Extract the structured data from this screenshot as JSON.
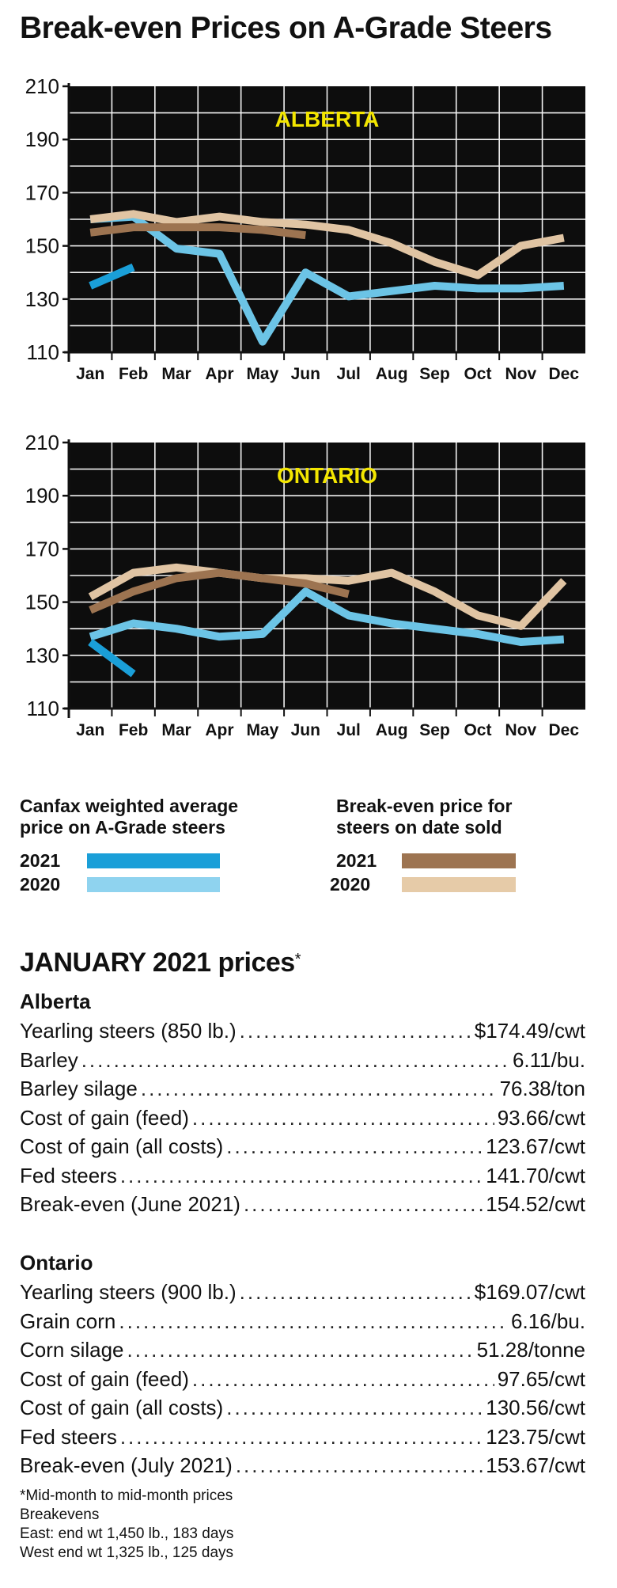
{
  "title": "Break-even Prices on A-Grade Steers",
  "chart_data": [
    {
      "type": "line",
      "region_label": "ALBERTA",
      "categories": [
        "Jan",
        "Feb",
        "Mar",
        "Apr",
        "May",
        "Jun",
        "Jul",
        "Aug",
        "Sep",
        "Oct",
        "Nov",
        "Dec"
      ],
      "yticks": [
        210,
        190,
        170,
        150,
        130,
        110
      ],
      "ylim": [
        110,
        210
      ],
      "grid": true,
      "series": [
        {
          "key": "canfax_2020",
          "color": "#6cc4e6",
          "values": [
            160,
            161,
            149,
            147,
            114,
            140,
            131,
            133,
            135,
            134,
            134,
            135
          ]
        },
        {
          "key": "breakeven_2020",
          "color": "#e0c4a3",
          "values": [
            160,
            162,
            159,
            161,
            159,
            158,
            156,
            151,
            144,
            139,
            150,
            153
          ]
        },
        {
          "key": "breakeven_2021",
          "color": "#9d7451",
          "values": [
            155,
            157,
            157,
            157,
            156,
            154,
            null,
            null,
            null,
            null,
            null,
            null
          ]
        },
        {
          "key": "canfax_2021",
          "color": "#1a9fd8",
          "values": [
            135,
            142,
            null,
            null,
            null,
            null,
            null,
            null,
            null,
            null,
            null,
            null
          ]
        }
      ]
    },
    {
      "type": "line",
      "region_label": "ONTARIO",
      "categories": [
        "Jan",
        "Feb",
        "Mar",
        "Apr",
        "May",
        "Jun",
        "Jul",
        "Aug",
        "Sep",
        "Oct",
        "Nov",
        "Dec"
      ],
      "yticks": [
        210,
        190,
        170,
        150,
        130,
        110
      ],
      "ylim": [
        110,
        210
      ],
      "grid": true,
      "series": [
        {
          "key": "canfax_2020",
          "color": "#6cc4e6",
          "values": [
            137,
            142,
            140,
            137,
            138,
            154,
            145,
            142,
            140,
            138,
            135,
            136
          ]
        },
        {
          "key": "breakeven_2020",
          "color": "#e0c4a3",
          "values": [
            152,
            161,
            163,
            161,
            159,
            159,
            158,
            161,
            154,
            145,
            141,
            158
          ]
        },
        {
          "key": "breakeven_2021",
          "color": "#9d7451",
          "values": [
            147,
            154,
            159,
            161,
            159,
            157,
            153,
            null,
            null,
            null,
            null,
            null
          ]
        },
        {
          "key": "canfax_2021",
          "color": "#1a9fd8",
          "values": [
            135,
            123,
            null,
            null,
            null,
            null,
            null,
            null,
            null,
            null,
            null,
            null
          ]
        }
      ]
    }
  ],
  "legend": {
    "canfax": {
      "heading_line1": "Canfax weighted average",
      "heading_line2": "price on A-Grade steers",
      "entries": [
        {
          "year": "2021",
          "color": "#1a9fd8"
        },
        {
          "year": "2020",
          "color": "#8fd3ef"
        }
      ]
    },
    "breakeven": {
      "heading_line1": "Break-even price for",
      "heading_line2": "steers on date sold",
      "entries": [
        {
          "year": "2021",
          "color": "#9d7451"
        },
        {
          "year": "2020",
          "color": "#e6cba8"
        }
      ]
    }
  },
  "prices": {
    "title": "JANUARY 2021 prices",
    "title_mark": "*",
    "alberta": {
      "heading": "Alberta",
      "rows": [
        {
          "label": "Yearling steers (850 lb.)",
          "value": "$174.49/cwt"
        },
        {
          "label": "Barley",
          "value": "6.11/bu."
        },
        {
          "label": "Barley silage",
          "value": "76.38/ton"
        },
        {
          "label": "Cost of gain (feed)",
          "value": "93.66/cwt"
        },
        {
          "label": "Cost of gain (all costs)",
          "value": "123.67/cwt"
        },
        {
          "label": "Fed steers",
          "value": "141.70/cwt"
        },
        {
          "label": "Break-even (June 2021)",
          "value": "154.52/cwt"
        }
      ]
    },
    "ontario": {
      "heading": "Ontario",
      "rows": [
        {
          "label": "Yearling steers (900 lb.)",
          "value": "$169.07/cwt"
        },
        {
          "label": "Grain corn",
          "value": "6.16/bu."
        },
        {
          "label": "Corn silage",
          "value": "51.28/tonne"
        },
        {
          "label": "Cost of gain (feed)",
          "value": "97.65/cwt"
        },
        {
          "label": "Cost of gain (all costs)",
          "value": "130.56/cwt"
        },
        {
          "label": "Fed steers",
          "value": "123.75/cwt"
        },
        {
          "label": "Break-even (July 2021)",
          "value": "153.67/cwt"
        }
      ]
    },
    "footnotes": [
      "*Mid-month to mid-month prices",
      "Breakevens",
      "East: end wt 1,450 lb., 183 days",
      "West end wt 1,325 lb., 125 days"
    ]
  },
  "dot_leader": "........................................................................................................"
}
